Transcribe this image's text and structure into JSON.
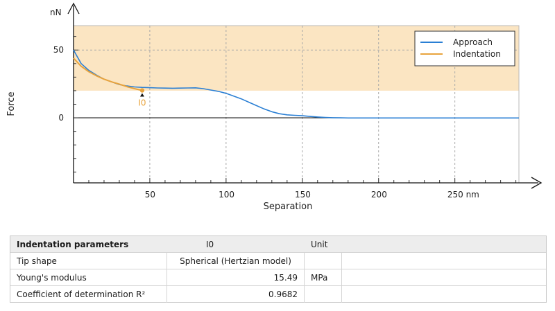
{
  "chart_data": {
    "type": "line",
    "xlabel": "Separation",
    "ylabel": "Force",
    "x_unit": "nm",
    "y_unit": "nN",
    "xlim": [
      0,
      292
    ],
    "ylim": [
      -48,
      68
    ],
    "x_ticks": [
      50,
      100,
      150,
      200,
      250
    ],
    "x_tick_labels": [
      "50",
      "100",
      "150",
      "200",
      "250 nm"
    ],
    "y_ticks": [
      0,
      50
    ],
    "y_tick_labels": [
      "0",
      "50"
    ],
    "shaded_band": {
      "y_from": 20,
      "y_to": 68,
      "color": "#fbe5c2"
    },
    "grid": true,
    "legend_position": "top-right",
    "series": [
      {
        "name": "Approach",
        "color": "#2a7fd4",
        "x": [
          0,
          2,
          5,
          10,
          15,
          20,
          25,
          30,
          35,
          40,
          45,
          50,
          55,
          60,
          65,
          70,
          75,
          80,
          85,
          90,
          95,
          100,
          105,
          110,
          115,
          120,
          125,
          130,
          135,
          140,
          145,
          150,
          155,
          160,
          165,
          170,
          175,
          180,
          200,
          250,
          292
        ],
        "y": [
          50,
          46,
          40,
          35,
          31.5,
          28.5,
          26.5,
          24.5,
          23.5,
          22.8,
          22.4,
          22.2,
          22.0,
          21.9,
          21.8,
          21.9,
          22.0,
          22.1,
          21.5,
          20.5,
          19.5,
          18.0,
          16.0,
          14.0,
          11.5,
          9.0,
          6.5,
          4.5,
          3.0,
          2.2,
          1.8,
          1.5,
          1.0,
          0.6,
          0.3,
          0.1,
          0.0,
          -0.1,
          -0.1,
          -0.1,
          -0.1
        ]
      },
      {
        "name": "Indentation",
        "color": "#e8a33c",
        "x": [
          0,
          5,
          10,
          15,
          20,
          25,
          30,
          35,
          40,
          45
        ],
        "y": [
          44,
          38,
          34,
          31,
          28.5,
          26.5,
          24.8,
          23,
          21.5,
          20.2
        ]
      }
    ],
    "annotations": [
      {
        "label": "I0",
        "x": 45,
        "y": 20.2,
        "color": "#e8a33c"
      }
    ]
  },
  "table": {
    "header": {
      "param": "Indentation parameters",
      "col": "I0",
      "unit": "Unit"
    },
    "rows": [
      {
        "param": "Tip shape",
        "value": "Spherical (Hertzian model)",
        "unit": ""
      },
      {
        "param": "Young's modulus",
        "value": "15.49",
        "unit": "MPa"
      },
      {
        "param": "Coefficient of determination R²",
        "value": "0.9682",
        "unit": ""
      }
    ]
  }
}
